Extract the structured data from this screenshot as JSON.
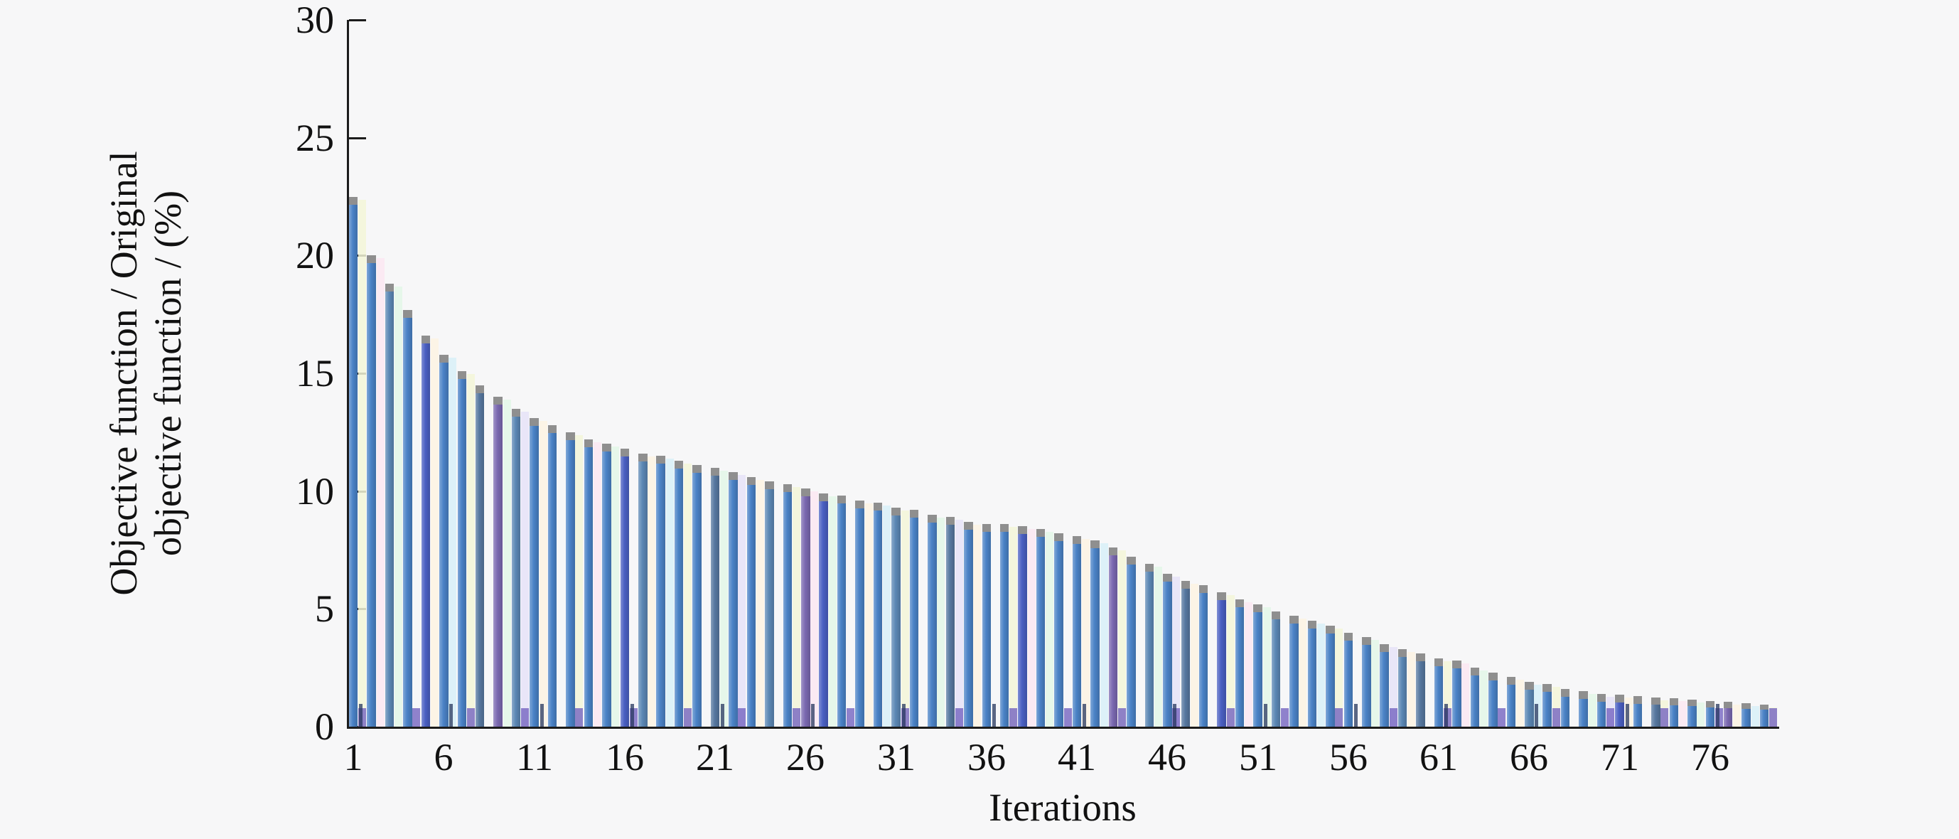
{
  "figure": {
    "background": "#f7f7f8",
    "axis_color": "#1c1c1c",
    "text_color": "#111111"
  },
  "chart_data": {
    "type": "bar",
    "title": "",
    "xlabel": "Iterations",
    "ylabel_line1": "Objective function / Original",
    "ylabel_line2": "objective function / (%)",
    "ylim": [
      0,
      30
    ],
    "yticks": [
      0,
      5,
      10,
      15,
      20,
      25,
      30
    ],
    "xticks": [
      1,
      6,
      11,
      16,
      21,
      26,
      31,
      36,
      41,
      46,
      51,
      56,
      61,
      66,
      71,
      76
    ],
    "grid": false,
    "legend": null,
    "x": [
      1,
      2,
      3,
      4,
      5,
      6,
      7,
      8,
      9,
      10,
      11,
      12,
      13,
      14,
      15,
      16,
      17,
      18,
      19,
      20,
      21,
      22,
      23,
      24,
      25,
      26,
      27,
      28,
      29,
      30,
      31,
      32,
      33,
      34,
      35,
      36,
      37,
      38,
      39,
      40,
      41,
      42,
      43,
      44,
      45,
      46,
      47,
      48,
      49,
      50,
      51,
      52,
      53,
      54,
      55,
      56,
      57,
      58,
      59,
      60,
      61,
      62,
      63,
      64,
      65,
      66,
      67,
      68,
      69,
      70,
      71,
      72,
      73,
      74,
      75,
      76,
      77,
      78,
      79
    ],
    "values": [
      22.5,
      20.0,
      18.8,
      17.7,
      16.6,
      15.8,
      15.1,
      14.5,
      14.0,
      13.5,
      13.1,
      12.8,
      12.5,
      12.2,
      12.0,
      11.8,
      11.6,
      11.5,
      11.3,
      11.1,
      11.0,
      10.8,
      10.6,
      10.4,
      10.3,
      10.1,
      9.9,
      9.8,
      9.6,
      9.5,
      9.3,
      9.2,
      9.0,
      8.9,
      8.7,
      8.6,
      8.6,
      8.5,
      8.4,
      8.2,
      8.1,
      7.9,
      7.6,
      7.2,
      6.9,
      6.5,
      6.2,
      6.0,
      5.7,
      5.4,
      5.2,
      4.9,
      4.7,
      4.5,
      4.3,
      4.0,
      3.8,
      3.5,
      3.3,
      3.1,
      2.9,
      2.8,
      2.5,
      2.3,
      2.1,
      1.9,
      1.8,
      1.6,
      1.5,
      1.4,
      1.35,
      1.3,
      1.25,
      1.2,
      1.15,
      1.1,
      1.05,
      1.0,
      0.95
    ],
    "bar_palette": [
      "#4a82c6",
      "#5b87b4",
      "#4a5fc2",
      "#7a68b0",
      "#56779f"
    ],
    "cap_color": "#8f8f8f",
    "stripe_colors": [
      "#d8f0f8",
      "#f3f6d8",
      "#fce7f2",
      "#e3f7e7",
      "#e6e3f8",
      "#fdf3e3"
    ],
    "accent_bottom_purple": "#7464c0",
    "accent_bottom_navy": "#25355e"
  }
}
